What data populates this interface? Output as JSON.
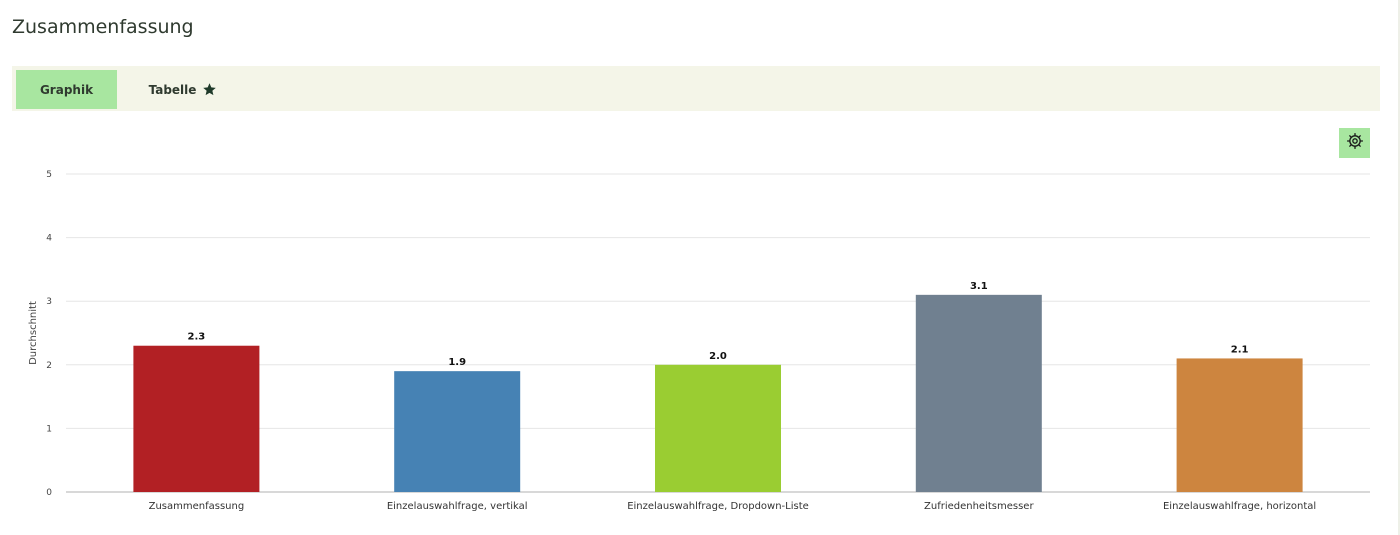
{
  "header": {
    "title": "Zusammenfassung"
  },
  "tabs": [
    {
      "label": "Graphik",
      "active": true
    },
    {
      "label": "Tabelle",
      "icon": "star-icon"
    }
  ],
  "toolbar": {
    "settings_icon": "gear-icon",
    "accent": "#a8e6a0"
  },
  "chart_data": {
    "type": "bar",
    "categories": [
      "Zusammenfassung",
      "Einzelauswahlfrage, vertikal",
      "Einzelauswahlfrage, Dropdown-Liste",
      "Zufriedenheitsmesser",
      "Einzelauswahlfrage, horizontal"
    ],
    "values": [
      2.3,
      1.9,
      2.0,
      3.1,
      2.1
    ],
    "value_labels": [
      "2.3",
      "1.9",
      "2.0",
      "3.1",
      "2.1"
    ],
    "colors": [
      "#b22024",
      "#4682b4",
      "#9acd32",
      "#708090",
      "#cd853f"
    ],
    "ylabel": "Durchschnitt",
    "ylim": [
      0,
      5
    ],
    "yticks": [
      "0",
      "1",
      "2",
      "3",
      "4",
      "5"
    ],
    "grid": true
  }
}
